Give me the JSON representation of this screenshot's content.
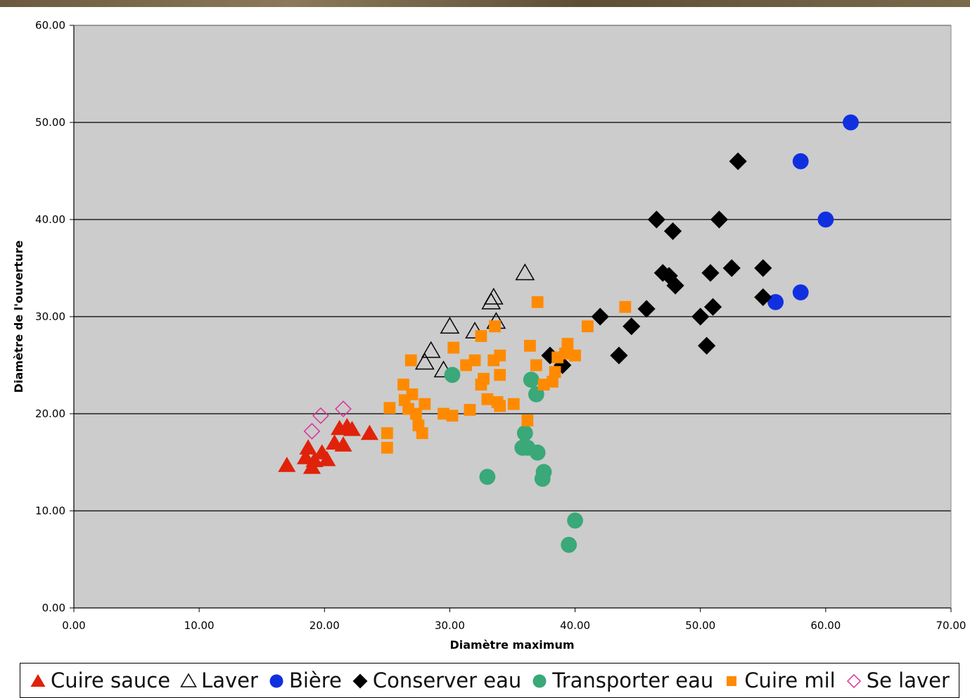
{
  "chart_data": {
    "type": "scatter",
    "title": "",
    "xlabel": "Diamètre maximum",
    "ylabel": "Diamètre de l'ouverture",
    "xlim": [
      0,
      70
    ],
    "ylim": [
      0,
      60
    ],
    "x_ticks": [
      "0.00",
      "10.00",
      "20.00",
      "30.00",
      "40.00",
      "50.00",
      "60.00",
      "70.00"
    ],
    "y_ticks": [
      "0.00",
      "10.00",
      "20.00",
      "30.00",
      "40.00",
      "50.00",
      "60.00"
    ],
    "grid": "horizontal",
    "plot_background": "#cccccc",
    "legend_position": "bottom",
    "series": [
      {
        "name": "Cuire sauce",
        "marker": "triangle-filled",
        "color": "#e0220a",
        "points": [
          [
            17,
            14.7
          ],
          [
            18.5,
            15.5
          ],
          [
            18.7,
            16.5
          ],
          [
            19,
            14.5
          ],
          [
            19.2,
            15.2
          ],
          [
            19.8,
            16
          ],
          [
            20.2,
            15.3
          ],
          [
            20.8,
            17
          ],
          [
            21.2,
            18.5
          ],
          [
            21.5,
            16.8
          ],
          [
            21.8,
            18.7
          ],
          [
            22.2,
            18.4
          ],
          [
            23.6,
            18
          ]
        ]
      },
      {
        "name": "Laver",
        "marker": "triangle-open",
        "color": "#000000",
        "points": [
          [
            28,
            25.3
          ],
          [
            28.5,
            26.5
          ],
          [
            29.5,
            24.5
          ],
          [
            30,
            29
          ],
          [
            32,
            28.5
          ],
          [
            33.3,
            31.5
          ],
          [
            33.5,
            32
          ],
          [
            33.7,
            29.5
          ],
          [
            36,
            34.5
          ]
        ]
      },
      {
        "name": "Bière",
        "marker": "circle",
        "color": "#1030e0",
        "points": [
          [
            56,
            31.5
          ],
          [
            58,
            32.5
          ],
          [
            58,
            46
          ],
          [
            60,
            40
          ],
          [
            62,
            50
          ]
        ]
      },
      {
        "name": "Conserver eau",
        "marker": "diamond",
        "color": "#000000",
        "points": [
          [
            38,
            26
          ],
          [
            39,
            25
          ],
          [
            42,
            30
          ],
          [
            43.5,
            26
          ],
          [
            44.5,
            29
          ],
          [
            45.7,
            30.8
          ],
          [
            46.5,
            40
          ],
          [
            47,
            34.5
          ],
          [
            47.5,
            34.2
          ],
          [
            47.8,
            38.8
          ],
          [
            48,
            33.2
          ],
          [
            50,
            30
          ],
          [
            50.5,
            27
          ],
          [
            50.8,
            34.5
          ],
          [
            51,
            31
          ],
          [
            51.5,
            40
          ],
          [
            52.5,
            35
          ],
          [
            53,
            46
          ],
          [
            55,
            32
          ],
          [
            55,
            35
          ]
        ]
      },
      {
        "name": "Transporter eau",
        "marker": "circle",
        "color": "#3aa878",
        "points": [
          [
            30.2,
            24
          ],
          [
            33,
            13.5
          ],
          [
            35.8,
            16.5
          ],
          [
            36,
            18
          ],
          [
            36.2,
            16.5
          ],
          [
            36.5,
            23.5
          ],
          [
            36.9,
            22
          ],
          [
            37,
            16
          ],
          [
            37.4,
            13.3
          ],
          [
            37.5,
            14
          ],
          [
            39.5,
            6.5
          ],
          [
            40,
            9
          ]
        ]
      },
      {
        "name": "Cuire mil",
        "marker": "square",
        "color": "#ff8a00",
        "points": [
          [
            25,
            16.5
          ],
          [
            25,
            18
          ],
          [
            25.2,
            20.6
          ],
          [
            26.3,
            23
          ],
          [
            26.4,
            21.4
          ],
          [
            26.7,
            20.5
          ],
          [
            26.9,
            25.5
          ],
          [
            27,
            22
          ],
          [
            27.3,
            20
          ],
          [
            27.5,
            18.8
          ],
          [
            27.8,
            18
          ],
          [
            28,
            21
          ],
          [
            29.5,
            20
          ],
          [
            30.2,
            19.8
          ],
          [
            30.3,
            26.8
          ],
          [
            31.3,
            25
          ],
          [
            31.6,
            20.4
          ],
          [
            32,
            25.5
          ],
          [
            32.5,
            28
          ],
          [
            32.5,
            23
          ],
          [
            32.7,
            23.6
          ],
          [
            33,
            21.5
          ],
          [
            33.5,
            25.5
          ],
          [
            33.6,
            29
          ],
          [
            33.8,
            21.2
          ],
          [
            34,
            20.8
          ],
          [
            34,
            24
          ],
          [
            34,
            26
          ],
          [
            35.1,
            21
          ],
          [
            36.2,
            19.3
          ],
          [
            36.4,
            27
          ],
          [
            36.9,
            25
          ],
          [
            37,
            31.5
          ],
          [
            37.5,
            23
          ],
          [
            38.2,
            23.3
          ],
          [
            38.4,
            24.3
          ],
          [
            38.6,
            25.8
          ],
          [
            39.2,
            26.2
          ],
          [
            39.4,
            27.2
          ],
          [
            40,
            26
          ],
          [
            41,
            29
          ],
          [
            44,
            31
          ]
        ]
      },
      {
        "name": "Se laver",
        "marker": "diamond-open",
        "color": "#e0309a",
        "points": [
          [
            19,
            18.2
          ],
          [
            19.7,
            19.8
          ],
          [
            21.5,
            20.5
          ]
        ]
      }
    ]
  }
}
